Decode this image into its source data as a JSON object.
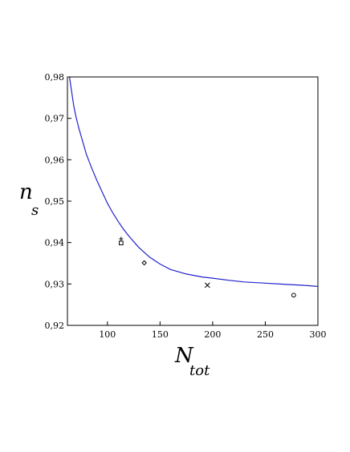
{
  "chart_data": {
    "type": "scatter",
    "xlabel": {
      "main": "N",
      "sub": "tot"
    },
    "ylabel": {
      "main": "n",
      "sub": "s"
    },
    "xlim": [
      62,
      300
    ],
    "ylim": [
      0.92,
      0.98
    ],
    "x_ticks": [
      100,
      150,
      200,
      250,
      300
    ],
    "x_tick_labels": [
      "100",
      "150",
      "200",
      "250",
      "300"
    ],
    "y_ticks": [
      0.92,
      0.93,
      0.94,
      0.95,
      0.96,
      0.97,
      0.98
    ],
    "y_tick_labels": [
      "0,92",
      "0,93",
      "0,94",
      "0,95",
      "0,96",
      "0,97",
      "0,98"
    ],
    "grid": false,
    "curve": {
      "color": "#2222cc",
      "x": [
        64,
        66,
        68,
        70,
        73,
        76,
        80,
        85,
        90,
        95,
        100,
        105,
        110,
        115,
        120,
        125,
        130,
        140,
        150,
        160,
        175,
        190,
        200,
        215,
        230,
        250,
        270,
        285,
        300
      ],
      "y": [
        0.98,
        0.9765,
        0.973,
        0.9705,
        0.9675,
        0.9648,
        0.9613,
        0.958,
        0.955,
        0.9522,
        0.9495,
        0.9472,
        0.9452,
        0.9433,
        0.9417,
        0.9402,
        0.9388,
        0.9365,
        0.9348,
        0.9335,
        0.9324,
        0.9317,
        0.9314,
        0.9309,
        0.9305,
        0.9302,
        0.9299,
        0.9297,
        0.9294
      ]
    },
    "points": [
      {
        "x": 113,
        "y": 0.9409,
        "marker": "cross"
      },
      {
        "x": 113,
        "y": 0.9399,
        "marker": "square"
      },
      {
        "x": 135,
        "y": 0.9351,
        "marker": "diamond"
      },
      {
        "x": 195,
        "y": 0.9297,
        "marker": "x"
      },
      {
        "x": 277,
        "y": 0.9273,
        "marker": "circle"
      }
    ]
  }
}
